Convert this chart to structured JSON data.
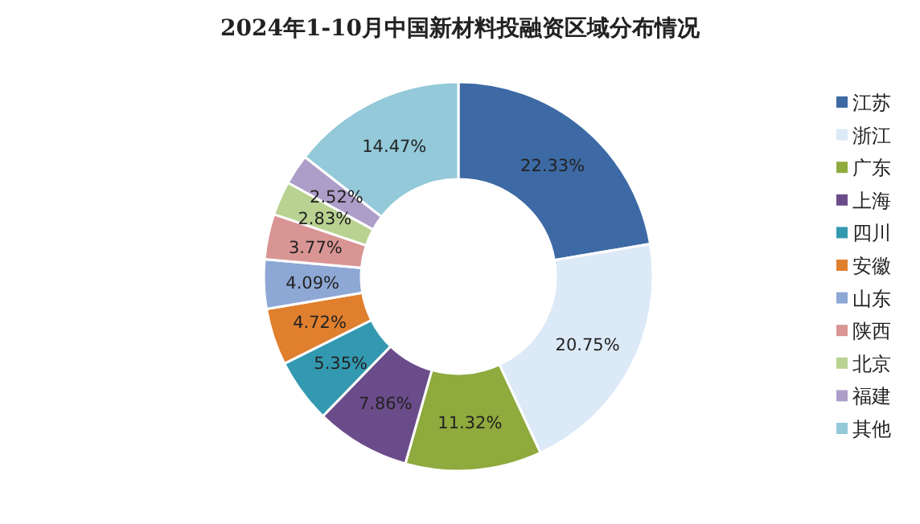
{
  "chart_data": {
    "type": "donut",
    "title": "2024年1-10月中国新材料投融资区域分布情况",
    "categories": [
      "江苏",
      "浙江",
      "广东",
      "上海",
      "四川",
      "安徽",
      "山东",
      "陕西",
      "北京",
      "福建",
      "其他"
    ],
    "values": [
      22.33,
      20.75,
      11.32,
      7.86,
      5.35,
      4.72,
      4.09,
      3.77,
      2.83,
      2.52,
      14.47
    ],
    "colors": [
      "#3d6aa5",
      "#dce9f7",
      "#8faa3d",
      "#6b4c8a",
      "#3399b0",
      "#e07f2e",
      "#8ea8d6",
      "#d99594",
      "#b9d291",
      "#ad9ec9",
      "#93c9d9"
    ],
    "value_labels": [
      "22.33%",
      "20.75%",
      "11.32%",
      "7.86%",
      "5.35%",
      "4.72%",
      "4.09%",
      "3.77%",
      "2.83%",
      "2.52%",
      "14.47%"
    ],
    "legend": "right"
  }
}
